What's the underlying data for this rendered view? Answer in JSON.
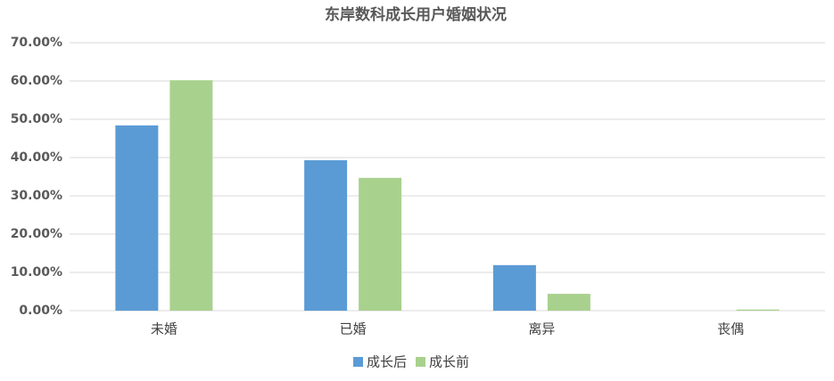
{
  "chart_data": {
    "type": "bar",
    "title": "东岸数科成长用户婚姻状况",
    "categories": [
      "未婚",
      "已婚",
      "离异",
      "丧偶"
    ],
    "series": [
      {
        "name": "成长后",
        "color": "#5b9bd5",
        "values": [
          48.4,
          39.3,
          11.9,
          0
        ]
      },
      {
        "name": "成长前",
        "color": "#a9d18e",
        "values": [
          60.2,
          34.7,
          4.4,
          0.3
        ]
      }
    ],
    "ylim": [
      0,
      70
    ],
    "yticks": [
      {
        "value": 0,
        "label": "0.00%"
      },
      {
        "value": 10,
        "label": "10.00%"
      },
      {
        "value": 20,
        "label": "20.00%"
      },
      {
        "value": 30,
        "label": "30.00%"
      },
      {
        "value": 40,
        "label": "40.00%"
      },
      {
        "value": 50,
        "label": "50.00%"
      },
      {
        "value": 60,
        "label": "60.00%"
      },
      {
        "value": 70,
        "label": "70.00%"
      }
    ],
    "grid": true,
    "legend": "bottom"
  }
}
